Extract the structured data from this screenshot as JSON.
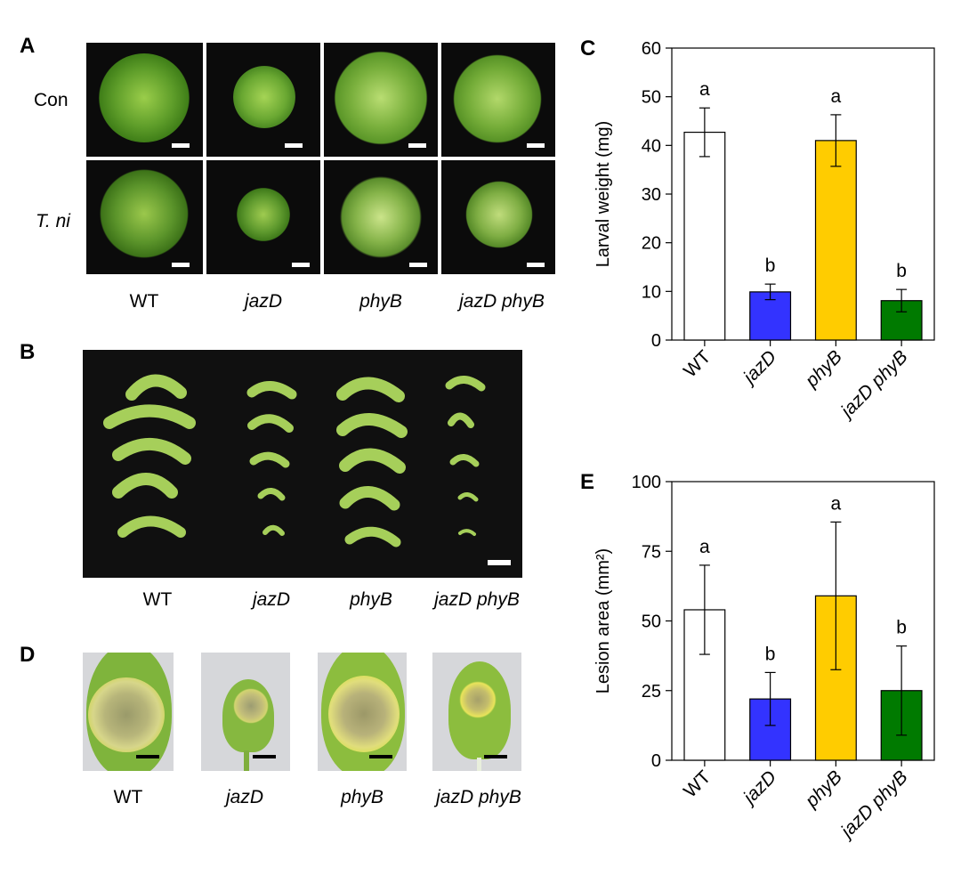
{
  "panels": {
    "A": {
      "label": "A",
      "rows": [
        "Con",
        "T. ni"
      ],
      "genotypes": [
        "WT",
        "jazD",
        "phyB",
        "jazD phyB"
      ]
    },
    "B": {
      "label": "B",
      "genotypes": [
        "WT",
        "jazD",
        "phyB",
        "jazD phyB"
      ]
    },
    "D": {
      "label": "D",
      "genotypes": [
        "WT",
        "jazD",
        "phyB",
        "jazD phyB"
      ]
    }
  },
  "chart_data": [
    {
      "panel_label": "C",
      "type": "bar",
      "categories": [
        "WT",
        "jazD",
        "phyB",
        "jazD phyB"
      ],
      "values": [
        42.7,
        9.9,
        41.0,
        8.1
      ],
      "errors": [
        5.0,
        1.6,
        5.3,
        2.3
      ],
      "sig_letters": [
        "a",
        "b",
        "a",
        "b"
      ],
      "colors": [
        "#ffffff",
        "#3333ff",
        "#ffcc00",
        "#007a00"
      ],
      "ylabel": "Larval weight (mg)",
      "ylim": [
        0,
        60
      ],
      "yticks": [
        0,
        10,
        20,
        30,
        40,
        50,
        60
      ]
    },
    {
      "panel_label": "E",
      "type": "bar",
      "categories": [
        "WT",
        "jazD",
        "phyB",
        "jazD phyB"
      ],
      "values": [
        54,
        22,
        59,
        25
      ],
      "errors": [
        16,
        9.5,
        26.5,
        16
      ],
      "sig_letters": [
        "a",
        "b",
        "a",
        "b"
      ],
      "colors": [
        "#ffffff",
        "#3333ff",
        "#ffcc00",
        "#007a00"
      ],
      "ylabel": "Lesion area (mm²)",
      "ylim": [
        0,
        100
      ],
      "yticks": [
        0,
        25,
        50,
        75,
        100
      ]
    }
  ]
}
